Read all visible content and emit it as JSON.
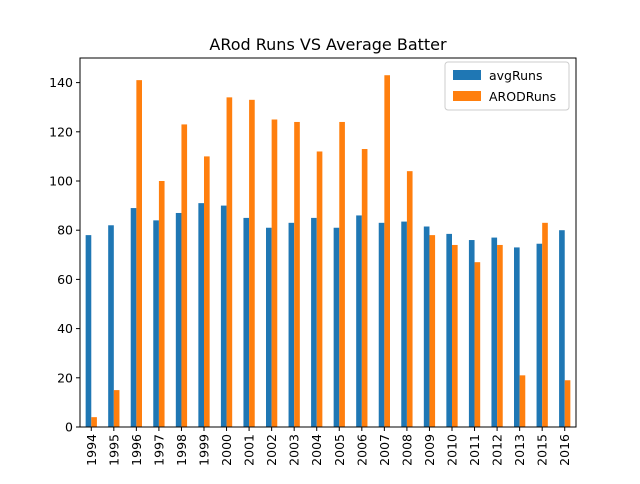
{
  "chart_data": {
    "type": "bar",
    "title": "ARod Runs VS Average Batter",
    "xlabel": "",
    "ylabel": "",
    "ylim": [
      0,
      150
    ],
    "yticks": [
      0,
      20,
      40,
      60,
      80,
      100,
      120,
      140
    ],
    "categories": [
      "1994",
      "1995",
      "1996",
      "1997",
      "1998",
      "1999",
      "2000",
      "2001",
      "2002",
      "2003",
      "2004",
      "2005",
      "2006",
      "2007",
      "2008",
      "2009",
      "2010",
      "2011",
      "2012",
      "2013",
      "2015",
      "2016"
    ],
    "series": [
      {
        "name": "avgRuns",
        "color": "#1f77b4",
        "values": [
          78,
          82,
          89,
          84,
          87,
          91,
          90,
          85,
          81,
          83,
          85,
          81,
          86,
          83,
          83.5,
          81.5,
          78.5,
          76,
          77,
          73,
          74.5,
          80
        ]
      },
      {
        "name": "ARODRuns",
        "color": "#ff7f0e",
        "values": [
          4,
          15,
          141,
          100,
          123,
          110,
          134,
          133,
          125,
          124,
          112,
          124,
          113,
          143,
          104,
          78,
          74,
          67,
          74,
          21,
          83,
          19
        ]
      }
    ],
    "legend_position": "top-right",
    "grid": false
  }
}
